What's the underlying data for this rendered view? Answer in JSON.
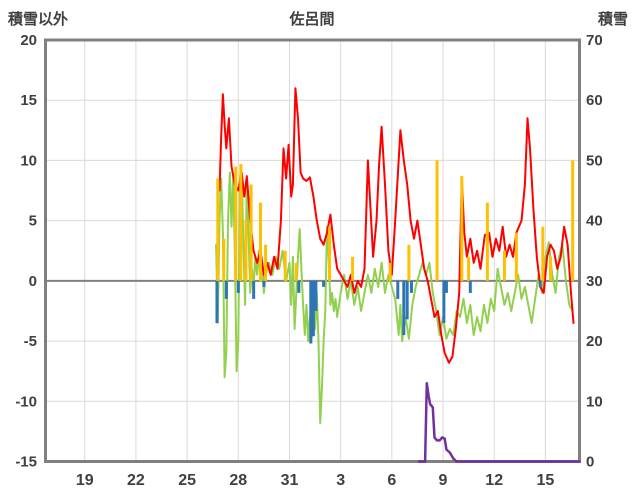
{
  "header": {
    "left_axis_title": "積雪以外",
    "chart_title": "佐呂間",
    "right_axis_title": "積雪"
  },
  "chart_data": {
    "type": "line",
    "title": "佐呂間",
    "left_axis": {
      "label": "積雪以外",
      "min": -15,
      "max": 20,
      "ticks": [
        20,
        15,
        10,
        5,
        0,
        -5,
        -10,
        -15
      ]
    },
    "right_axis": {
      "label": "積雪",
      "min": 0,
      "max": 70,
      "ticks": [
        70,
        60,
        50,
        40,
        30,
        20,
        10,
        0
      ]
    },
    "x_axis": {
      "tick_labels": [
        "19",
        "22",
        "25",
        "28",
        "31",
        "3",
        "6",
        "9",
        "12",
        "15"
      ],
      "tick_days": [
        19,
        22,
        25,
        28,
        31,
        34,
        37,
        40,
        43,
        46
      ],
      "domain": [
        16.7,
        48.0
      ]
    },
    "grid": true,
    "legend": "none",
    "colors": {
      "grid": "#D9D9D9",
      "axis": "#808080",
      "zero_line": "#808080",
      "text": "#404040",
      "background": "#FFFFFF"
    },
    "series": [
      {
        "name": "green-line",
        "color": "#92D050",
        "axis": "left",
        "style": "line",
        "width": 2,
        "points": [
          [
            26.7,
            3
          ],
          [
            26.8,
            -3.5
          ],
          [
            26.9,
            5
          ],
          [
            27.0,
            8.5
          ],
          [
            27.1,
            4
          ],
          [
            27.2,
            -8
          ],
          [
            27.3,
            -6
          ],
          [
            27.4,
            5
          ],
          [
            27.5,
            9
          ],
          [
            27.6,
            4.5
          ],
          [
            27.7,
            8.8
          ],
          [
            27.8,
            2
          ],
          [
            27.9,
            -7.5
          ],
          [
            28.0,
            -5
          ],
          [
            28.1,
            8.7
          ],
          [
            28.2,
            9
          ],
          [
            28.3,
            3
          ],
          [
            28.4,
            -2
          ],
          [
            28.5,
            8.5
          ],
          [
            28.6,
            4
          ],
          [
            28.7,
            -1
          ],
          [
            28.8,
            1
          ],
          [
            28.9,
            -0.5
          ],
          [
            29.0,
            2
          ],
          [
            29.1,
            0.5
          ],
          [
            29.2,
            2.5
          ],
          [
            29.3,
            0
          ],
          [
            29.4,
            1.5
          ],
          [
            29.5,
            -1
          ],
          [
            29.6,
            0.5
          ],
          [
            29.8,
            1.5
          ],
          [
            30.0,
            0.5
          ],
          [
            30.2,
            2
          ],
          [
            30.4,
            1
          ],
          [
            30.6,
            2.5
          ],
          [
            30.8,
            0
          ],
          [
            31.0,
            1.5
          ],
          [
            31.1,
            -2
          ],
          [
            31.2,
            2
          ],
          [
            31.3,
            -4
          ],
          [
            31.4,
            -1
          ],
          [
            31.5,
            2
          ],
          [
            31.6,
            4.3
          ],
          [
            31.7,
            1
          ],
          [
            31.8,
            -2
          ],
          [
            31.9,
            -4.5
          ],
          [
            32.0,
            -2
          ],
          [
            32.1,
            -5
          ],
          [
            32.2,
            -3
          ],
          [
            32.3,
            -4.8
          ],
          [
            32.4,
            -2.5
          ],
          [
            32.5,
            -4
          ],
          [
            32.6,
            -1
          ],
          [
            32.7,
            -5
          ],
          [
            32.8,
            -11.8
          ],
          [
            32.9,
            -9
          ],
          [
            33.0,
            -5
          ],
          [
            33.1,
            -2.5
          ],
          [
            33.2,
            4.5
          ],
          [
            33.3,
            2
          ],
          [
            33.4,
            -2
          ],
          [
            33.5,
            -1
          ],
          [
            33.6,
            -2.5
          ],
          [
            33.7,
            -1.5
          ],
          [
            33.8,
            -3
          ],
          [
            34.0,
            -1
          ],
          [
            34.2,
            0.5
          ],
          [
            34.4,
            -1.5
          ],
          [
            34.6,
            0
          ],
          [
            34.8,
            -2
          ],
          [
            35.0,
            -0.5
          ],
          [
            35.2,
            -2.5
          ],
          [
            35.4,
            -1
          ],
          [
            35.6,
            0.5
          ],
          [
            35.8,
            -1
          ],
          [
            36.0,
            1
          ],
          [
            36.2,
            -0.5
          ],
          [
            36.4,
            1.5
          ],
          [
            36.6,
            -1
          ],
          [
            36.8,
            0.5
          ],
          [
            37.0,
            -0.5
          ],
          [
            37.2,
            -1.5
          ],
          [
            37.4,
            -4.5
          ],
          [
            37.5,
            -2
          ],
          [
            37.6,
            -5
          ],
          [
            37.8,
            -3
          ],
          [
            38.0,
            -4.8
          ],
          [
            38.2,
            -2
          ],
          [
            38.4,
            -0.5
          ],
          [
            38.6,
            0.5
          ],
          [
            38.8,
            1.5
          ],
          [
            39.0,
            0.5
          ],
          [
            39.2,
            1.5
          ],
          [
            39.4,
            -1
          ],
          [
            39.6,
            -2.5
          ],
          [
            39.8,
            -4.5
          ],
          [
            40.0,
            -3
          ],
          [
            40.2,
            -4.8
          ],
          [
            40.4,
            -4
          ],
          [
            40.6,
            -4.5
          ],
          [
            40.8,
            -2.5
          ],
          [
            41.0,
            -3
          ],
          [
            41.2,
            -1.5
          ],
          [
            41.4,
            -3.5
          ],
          [
            41.6,
            -2
          ],
          [
            41.8,
            -4.5
          ],
          [
            42.0,
            -3
          ],
          [
            42.2,
            -4.2
          ],
          [
            42.4,
            -2
          ],
          [
            42.6,
            -3.5
          ],
          [
            42.8,
            -1.5
          ],
          [
            43.0,
            -2.5
          ],
          [
            43.2,
            1
          ],
          [
            43.4,
            -0.5
          ],
          [
            43.6,
            -2
          ],
          [
            43.8,
            -1
          ],
          [
            44.0,
            -2.5
          ],
          [
            44.2,
            -1
          ],
          [
            44.4,
            0.5
          ],
          [
            44.6,
            -1.5
          ],
          [
            44.8,
            -0.5
          ],
          [
            45.0,
            -2
          ],
          [
            45.2,
            -3.5
          ],
          [
            45.4,
            -1.5
          ],
          [
            45.6,
            0.5
          ],
          [
            45.8,
            -1
          ],
          [
            46.0,
            2
          ],
          [
            46.2,
            3.2
          ],
          [
            46.4,
            0.5
          ],
          [
            46.6,
            -1
          ],
          [
            46.8,
            2
          ],
          [
            47.0,
            3
          ],
          [
            47.2,
            0
          ],
          [
            47.4,
            -2
          ],
          [
            47.6,
            -2.5
          ]
        ]
      },
      {
        "name": "red-line",
        "color": "#FF0000",
        "axis": "left",
        "style": "line",
        "width": 2,
        "points": [
          [
            26.9,
            7.5
          ],
          [
            27.0,
            12
          ],
          [
            27.1,
            15.5
          ],
          [
            27.2,
            13
          ],
          [
            27.3,
            11
          ],
          [
            27.45,
            13.5
          ],
          [
            27.6,
            9.5
          ],
          [
            27.8,
            8
          ],
          [
            28.0,
            7.5
          ],
          [
            28.2,
            9
          ],
          [
            28.35,
            7
          ],
          [
            28.5,
            8.7
          ],
          [
            28.7,
            5
          ],
          [
            28.9,
            2.5
          ],
          [
            29.1,
            1.5
          ],
          [
            29.3,
            2.5
          ],
          [
            29.5,
            0.5
          ],
          [
            29.7,
            1.5
          ],
          [
            29.9,
            0.5
          ],
          [
            30.1,
            2
          ],
          [
            30.3,
            1
          ],
          [
            30.5,
            5
          ],
          [
            30.65,
            11
          ],
          [
            30.8,
            8.5
          ],
          [
            30.95,
            11.3
          ],
          [
            31.1,
            7
          ],
          [
            31.2,
            8
          ],
          [
            31.35,
            16
          ],
          [
            31.5,
            13.5
          ],
          [
            31.65,
            9
          ],
          [
            31.8,
            8.5
          ],
          [
            32.0,
            8.3
          ],
          [
            32.2,
            8.6
          ],
          [
            32.4,
            7
          ],
          [
            32.6,
            5
          ],
          [
            32.8,
            3.5
          ],
          [
            33.0,
            3
          ],
          [
            33.2,
            4
          ],
          [
            33.4,
            5.5
          ],
          [
            33.6,
            3
          ],
          [
            33.8,
            1
          ],
          [
            34.0,
            0.5
          ],
          [
            34.2,
            0
          ],
          [
            34.4,
            -0.5
          ],
          [
            34.6,
            0.5
          ],
          [
            34.8,
            -1
          ],
          [
            35.0,
            0
          ],
          [
            35.2,
            -0.5
          ],
          [
            35.4,
            1
          ],
          [
            35.6,
            10
          ],
          [
            35.75,
            6
          ],
          [
            35.9,
            2
          ],
          [
            36.1,
            5
          ],
          [
            36.25,
            9.5
          ],
          [
            36.4,
            12.8
          ],
          [
            36.6,
            8
          ],
          [
            36.8,
            2.5
          ],
          [
            37.0,
            0.5
          ],
          [
            37.2,
            5
          ],
          [
            37.5,
            12.5
          ],
          [
            37.7,
            10
          ],
          [
            37.9,
            8
          ],
          [
            38.1,
            5
          ],
          [
            38.3,
            3.5
          ],
          [
            38.5,
            5
          ],
          [
            38.7,
            3
          ],
          [
            38.9,
            1
          ],
          [
            39.1,
            0
          ],
          [
            39.3,
            -1.5
          ],
          [
            39.5,
            -3
          ],
          [
            39.7,
            -2.5
          ],
          [
            39.9,
            -4.5
          ],
          [
            40.1,
            -6
          ],
          [
            40.35,
            -6.8
          ],
          [
            40.55,
            -6.3
          ],
          [
            40.75,
            -4
          ],
          [
            40.95,
            -1
          ],
          [
            41.1,
            8.5
          ],
          [
            41.25,
            4
          ],
          [
            41.4,
            2
          ],
          [
            41.6,
            3.5
          ],
          [
            41.8,
            1.5
          ],
          [
            42.0,
            2.5
          ],
          [
            42.2,
            1
          ],
          [
            42.45,
            3.8
          ],
          [
            42.7,
            4
          ],
          [
            42.9,
            2
          ],
          [
            43.1,
            3.5
          ],
          [
            43.3,
            2.5
          ],
          [
            43.5,
            4.5
          ],
          [
            43.7,
            2
          ],
          [
            43.9,
            3
          ],
          [
            44.1,
            2
          ],
          [
            44.3,
            4
          ],
          [
            44.6,
            5
          ],
          [
            44.8,
            8
          ],
          [
            44.95,
            13.5
          ],
          [
            45.1,
            11
          ],
          [
            45.3,
            6
          ],
          [
            45.5,
            2
          ],
          [
            45.7,
            -0.5
          ],
          [
            45.9,
            -1
          ],
          [
            46.1,
            2
          ],
          [
            46.3,
            3
          ],
          [
            46.5,
            2.5
          ],
          [
            46.7,
            1
          ],
          [
            46.9,
            2
          ],
          [
            47.1,
            4.5
          ],
          [
            47.3,
            3
          ],
          [
            47.5,
            -1
          ],
          [
            47.65,
            -3.5
          ]
        ]
      },
      {
        "name": "orange-spikes",
        "color": "#FFC000",
        "axis": "left",
        "style": "spike",
        "width": 3,
        "points": [
          [
            26.8,
            8.5
          ],
          [
            27.15,
            3.5
          ],
          [
            27.85,
            9.5
          ],
          [
            28.15,
            9.7
          ],
          [
            28.45,
            5
          ],
          [
            28.75,
            8
          ],
          [
            29.3,
            6.5
          ],
          [
            29.6,
            3
          ],
          [
            30.75,
            2.5
          ],
          [
            31.4,
            1.5
          ],
          [
            33.35,
            4.5
          ],
          [
            34.7,
            2
          ],
          [
            36.9,
            1.5
          ],
          [
            38.0,
            3
          ],
          [
            39.65,
            10
          ],
          [
            41.1,
            8.7
          ],
          [
            41.5,
            2
          ],
          [
            42.6,
            6.5
          ],
          [
            43.6,
            2.5
          ],
          [
            44.3,
            4
          ],
          [
            45.85,
            4.5
          ],
          [
            46.3,
            2
          ],
          [
            47.6,
            10
          ]
        ]
      },
      {
        "name": "blue-spikes",
        "color": "#2E75B6",
        "axis": "left",
        "style": "spike",
        "width": 3,
        "points": [
          [
            26.75,
            -3.5
          ],
          [
            27.3,
            -1.5
          ],
          [
            28.0,
            -1
          ],
          [
            28.9,
            -1.5
          ],
          [
            29.5,
            -0.5
          ],
          [
            31.55,
            -1
          ],
          [
            32.25,
            -5.2
          ],
          [
            32.4,
            -4.6
          ],
          [
            32.55,
            -2.5
          ],
          [
            33.0,
            -0.5
          ],
          [
            37.35,
            -1.5
          ],
          [
            37.7,
            -4.5
          ],
          [
            37.9,
            -3.2
          ],
          [
            38.15,
            -1
          ],
          [
            40.05,
            -3.5
          ],
          [
            40.2,
            -1
          ],
          [
            41.6,
            -1
          ],
          [
            45.7,
            -0.5
          ]
        ]
      },
      {
        "name": "purple-line",
        "color": "#7030A0",
        "axis": "right",
        "style": "line",
        "width": 2.5,
        "points": [
          [
            38.6,
            0
          ],
          [
            38.95,
            0
          ],
          [
            39.05,
            13
          ],
          [
            39.15,
            11
          ],
          [
            39.25,
            9.5
          ],
          [
            39.4,
            9
          ],
          [
            39.5,
            4
          ],
          [
            39.65,
            3.5
          ],
          [
            39.8,
            3.5
          ],
          [
            39.95,
            4
          ],
          [
            40.1,
            3.8
          ],
          [
            40.2,
            2
          ],
          [
            40.4,
            1.5
          ],
          [
            40.6,
            0.5
          ],
          [
            40.8,
            0
          ],
          [
            48.0,
            0
          ]
        ]
      }
    ]
  }
}
